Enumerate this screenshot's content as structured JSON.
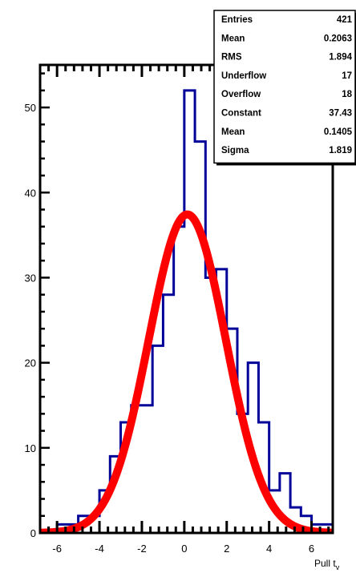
{
  "chart_data": {
    "type": "histogram",
    "xlabel": "Pull t",
    "xlabel_subscript": "v",
    "xlim": [
      -6.8,
      7.0
    ],
    "ylim": [
      0,
      55
    ],
    "x_ticks": [
      -6,
      -4,
      -2,
      0,
      2,
      4,
      6
    ],
    "y_ticks": [
      0,
      10,
      20,
      30,
      40,
      50
    ],
    "bin_width": 0.5,
    "bins": [
      {
        "x0": -6.5,
        "count": 0
      },
      {
        "x0": -6.0,
        "count": 1
      },
      {
        "x0": -5.5,
        "count": 1
      },
      {
        "x0": -5.0,
        "count": 2
      },
      {
        "x0": -4.5,
        "count": 2
      },
      {
        "x0": -4.0,
        "count": 5
      },
      {
        "x0": -3.5,
        "count": 9
      },
      {
        "x0": -3.0,
        "count": 13
      },
      {
        "x0": -2.5,
        "count": 15
      },
      {
        "x0": -2.0,
        "count": 15
      },
      {
        "x0": -1.5,
        "count": 22
      },
      {
        "x0": -1.0,
        "count": 28
      },
      {
        "x0": -0.5,
        "count": 36
      },
      {
        "x0": 0.0,
        "count": 52
      },
      {
        "x0": 0.5,
        "count": 46
      },
      {
        "x0": 1.0,
        "count": 30
      },
      {
        "x0": 1.5,
        "count": 31
      },
      {
        "x0": 2.0,
        "count": 24
      },
      {
        "x0": 2.5,
        "count": 14
      },
      {
        "x0": 3.0,
        "count": 20
      },
      {
        "x0": 3.5,
        "count": 13
      },
      {
        "x0": 4.0,
        "count": 5
      },
      {
        "x0": 4.5,
        "count": 7
      },
      {
        "x0": 5.0,
        "count": 3
      },
      {
        "x0": 5.5,
        "count": 2
      },
      {
        "x0": 6.0,
        "count": 1
      },
      {
        "x0": 6.5,
        "count": 1
      }
    ],
    "fit": {
      "type": "gaus",
      "constant": 37.43,
      "mean": 0.1405,
      "sigma": 1.819
    },
    "colors": {
      "histogram": "#000099",
      "fit": "#ff0000",
      "frame": "#000000"
    },
    "stats_box": [
      {
        "label": "Entries",
        "value": "421"
      },
      {
        "label": "Mean",
        "value": "0.2063"
      },
      {
        "label": "RMS",
        "value": "1.894"
      },
      {
        "label": "Underflow",
        "value": "17"
      },
      {
        "label": "Overflow",
        "value": "18"
      },
      {
        "label": "Constant",
        "value": "37.43"
      },
      {
        "label": "Mean",
        "value": "0.1405"
      },
      {
        "label": "Sigma",
        "value": "1.819"
      }
    ]
  }
}
